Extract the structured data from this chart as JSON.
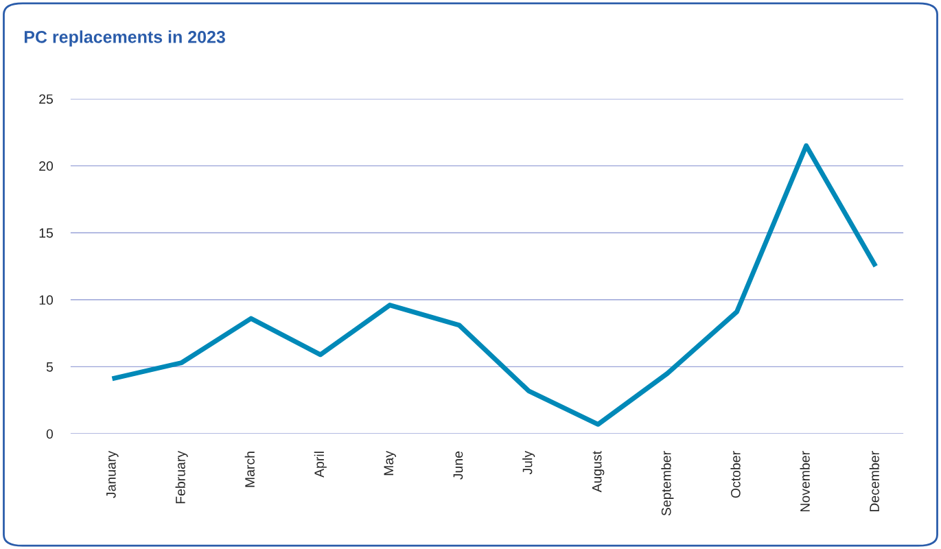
{
  "chart_data": {
    "type": "line",
    "title": "PC replacements in 2023",
    "categories": [
      "January",
      "February",
      "March",
      "April",
      "May",
      "June",
      "July",
      "August",
      "September",
      "October",
      "November",
      "December"
    ],
    "series": [
      {
        "color": "#0089b8",
        "values": [
          4.1,
          5.3,
          8.6,
          5.9,
          9.6,
          8.1,
          3.2,
          0.7,
          4.5,
          9.1,
          21.5,
          12.5
        ]
      }
    ],
    "ylim": [
      0,
      25
    ],
    "yticks": [
      0,
      5,
      10,
      15,
      20,
      25
    ],
    "grid": "y",
    "marker": "none",
    "line_style": "solid"
  }
}
